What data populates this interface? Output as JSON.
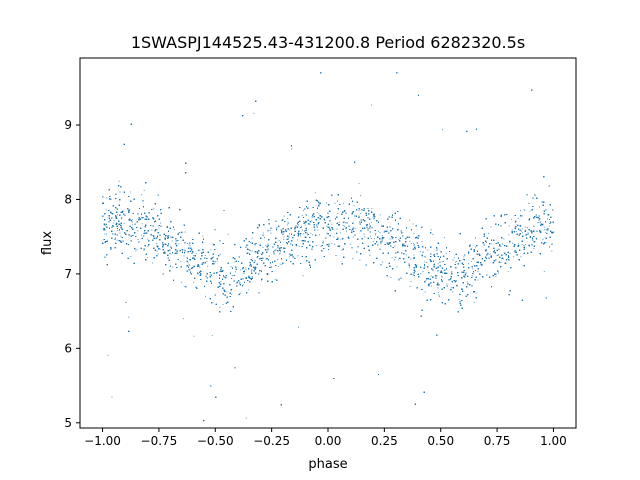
{
  "chart_data": {
    "type": "scatter",
    "title": "1SWASPJ144525.43-431200.8 Period 6282320.5s",
    "xlabel": "phase",
    "ylabel": "flux",
    "xlim": [
      -1.1,
      1.1
    ],
    "ylim": [
      4.93,
      9.9
    ],
    "x_ticks": [
      -1.0,
      -0.75,
      -0.5,
      -0.25,
      0.0,
      0.25,
      0.5,
      0.75,
      1.0
    ],
    "x_tick_labels": [
      "−1.00",
      "−0.75",
      "−0.50",
      "−0.25",
      "0.00",
      "0.25",
      "0.50",
      "0.75",
      "1.00"
    ],
    "y_ticks": [
      5,
      6,
      7,
      8,
      9
    ],
    "y_tick_labels": [
      "5",
      "6",
      "7",
      "8",
      "9"
    ],
    "grid": false,
    "legend": "none",
    "marker_color": "#1f77b4",
    "series": [
      {
        "x_range": [
          -1.0,
          1.0
        ],
        "folded": true,
        "trend": {
          "x": [
            -1.0,
            -0.9,
            -0.8,
            -0.7,
            -0.6,
            -0.5,
            -0.45,
            -0.4,
            -0.3,
            -0.2,
            -0.1,
            -0.05,
            0.0,
            0.1,
            0.2,
            0.3,
            0.4,
            0.5,
            0.55,
            0.6,
            0.7,
            0.8,
            0.9,
            0.95,
            1.0
          ],
          "y": [
            7.65,
            7.75,
            7.6,
            7.4,
            7.25,
            7.05,
            6.95,
            7.0,
            7.25,
            7.45,
            7.55,
            7.65,
            7.62,
            7.65,
            7.6,
            7.45,
            7.2,
            7.05,
            6.98,
            7.0,
            7.2,
            7.4,
            7.6,
            7.7,
            7.65
          ]
        },
        "scatter_spread": 0.3,
        "n_points": 14000
      }
    ]
  }
}
